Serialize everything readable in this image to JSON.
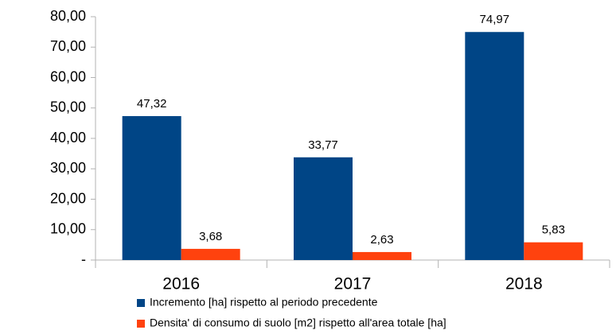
{
  "chart_data": {
    "type": "bar",
    "categories": [
      "2016",
      "2017",
      "2018"
    ],
    "series": [
      {
        "name": "Incremento [ha] rispetto al periodo precedente",
        "color": "#004586",
        "values": [
          47.32,
          33.77,
          74.97
        ],
        "value_labels": [
          "47,32",
          "33,77",
          "74,97"
        ]
      },
      {
        "name": "Densita' di consumo di suolo [m2] rispetto all'area totale [ha]",
        "color": "#ff420e",
        "values": [
          3.68,
          2.63,
          5.83
        ],
        "value_labels": [
          "3,68",
          "2,63",
          "5,83"
        ]
      }
    ],
    "ylim": [
      0,
      80
    ],
    "yticks": [
      {
        "value": 0,
        "label": "-"
      },
      {
        "value": 10,
        "label": "10,00"
      },
      {
        "value": 20,
        "label": "20,00"
      },
      {
        "value": 30,
        "label": "30,00"
      },
      {
        "value": 40,
        "label": "40,00"
      },
      {
        "value": 50,
        "label": "50,00"
      },
      {
        "value": 60,
        "label": "60,00"
      },
      {
        "value": 70,
        "label": "70,00"
      },
      {
        "value": 80,
        "label": "80,00"
      }
    ],
    "grid": false,
    "legend": "bottom"
  }
}
